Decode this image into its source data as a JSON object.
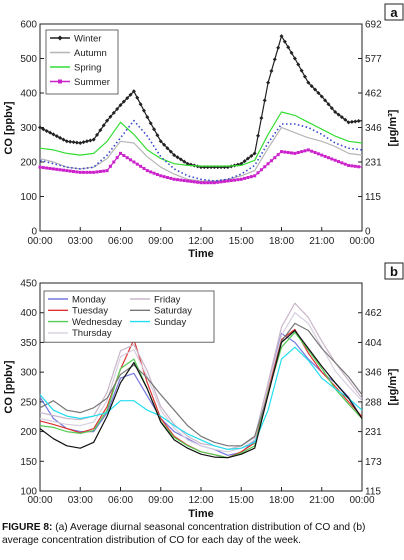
{
  "caption": {
    "label": "FIGURE 8:",
    "text": "(a) Average diurnal seasonal concentration distribution of CO and (b) average concentration distribution of CO for each day of the week."
  },
  "chart_data": [
    {
      "type": "line",
      "panel": "a",
      "xlabel": "Time",
      "ylabel": "CO [ppbv]",
      "ylabel_right": "[µg/m³]",
      "x_ticks": [
        "00:00",
        "03:00",
        "06:00",
        "09:00",
        "12:00",
        "15:00",
        "18:00",
        "21:00",
        "00:00"
      ],
      "ylim": [
        0,
        600
      ],
      "y_ticks": [
        0,
        100,
        200,
        300,
        400,
        500,
        600
      ],
      "y2_ticks": [
        "0",
        "115",
        "231",
        "346",
        "462",
        "577",
        "692"
      ],
      "legend_position": "top-left",
      "grid": false,
      "x_hours": [
        0,
        1,
        2,
        3,
        4,
        5,
        6,
        7,
        8,
        9,
        10,
        11,
        12,
        13,
        14,
        15,
        16,
        17,
        18,
        19,
        20,
        21,
        22,
        23,
        24
      ],
      "series": [
        {
          "name": "Winter",
          "color": "#222222",
          "marker": "diamond",
          "values": [
            300,
            280,
            260,
            255,
            265,
            320,
            365,
            405,
            330,
            260,
            220,
            195,
            185,
            185,
            185,
            195,
            225,
            430,
            565,
            500,
            430,
            390,
            345,
            315,
            320
          ]
        },
        {
          "name": "Autumn",
          "color": "#b5b5b5",
          "marker": "none",
          "values": [
            210,
            200,
            185,
            180,
            185,
            210,
            260,
            255,
            215,
            185,
            165,
            150,
            145,
            145,
            150,
            160,
            175,
            240,
            300,
            285,
            270,
            260,
            245,
            225,
            220
          ]
        },
        {
          "name": "Spring",
          "color": "#33dd33",
          "marker": "none",
          "values": [
            240,
            235,
            225,
            220,
            225,
            260,
            315,
            280,
            235,
            210,
            195,
            190,
            188,
            188,
            188,
            190,
            205,
            280,
            345,
            335,
            315,
            295,
            275,
            260,
            255
          ]
        },
        {
          "name": "Summer",
          "color": "#cc22cc",
          "marker": "square",
          "values": [
            185,
            180,
            175,
            170,
            170,
            175,
            225,
            200,
            175,
            160,
            150,
            145,
            140,
            140,
            145,
            150,
            160,
            195,
            230,
            225,
            235,
            220,
            205,
            190,
            185
          ]
        },
        {
          "name": "",
          "color": "#3344cc",
          "marker": "dot",
          "values": [
            205,
            195,
            185,
            180,
            185,
            220,
            270,
            320,
            275,
            215,
            180,
            160,
            150,
            145,
            150,
            165,
            190,
            255,
            310,
            310,
            300,
            280,
            255,
            240,
            235
          ]
        }
      ]
    },
    {
      "type": "line",
      "panel": "b",
      "xlabel": "Time",
      "ylabel": "CO [ppbv]",
      "ylabel_right": "[µg/m³]",
      "x_ticks": [
        "00:00",
        "03:00",
        "06:00",
        "09:00",
        "12:00",
        "15:00",
        "18:00",
        "21:00",
        "00:00"
      ],
      "ylim": [
        100,
        450
      ],
      "y_ticks": [
        100,
        150,
        200,
        250,
        300,
        350,
        400,
        450
      ],
      "y2_ticks": [
        "115",
        "173",
        "231",
        "288",
        "346",
        "404",
        "462"
      ],
      "legend_position": "top-left",
      "grid": false,
      "x_hours": [
        0,
        1,
        2,
        3,
        4,
        5,
        6,
        7,
        8,
        9,
        10,
        11,
        12,
        13,
        14,
        15,
        16,
        17,
        18,
        19,
        20,
        21,
        22,
        23,
        24
      ],
      "series": [
        {
          "name": "Monday",
          "color": "#7777dd",
          "values": [
            258,
            222,
            205,
            200,
            200,
            232,
            290,
            298,
            260,
            222,
            200,
            188,
            176,
            170,
            160,
            165,
            185,
            280,
            365,
            350,
            322,
            300,
            282,
            258,
            222
          ]
        },
        {
          "name": "Tuesday",
          "color": "#dd3333",
          "values": [
            218,
            212,
            205,
            198,
            205,
            242,
            305,
            355,
            282,
            222,
            192,
            177,
            166,
            161,
            156,
            166,
            181,
            272,
            355,
            372,
            332,
            300,
            276,
            250,
            225
          ]
        },
        {
          "name": "Wednesday",
          "color": "#55cc55",
          "values": [
            210,
            207,
            200,
            197,
            202,
            236,
            306,
            322,
            272,
            217,
            190,
            176,
            166,
            161,
            156,
            164,
            176,
            266,
            342,
            367,
            337,
            306,
            272,
            246,
            222
          ]
        },
        {
          "name": "Thursday",
          "color": "#d7cfdf",
          "values": [
            222,
            217,
            212,
            210,
            216,
            252,
            326,
            338,
            292,
            236,
            206,
            186,
            176,
            170,
            166,
            172,
            186,
            276,
            362,
            400,
            382,
            342,
            302,
            276,
            252
          ]
        },
        {
          "name": "Friday",
          "color": "#c9b6c9",
          "values": [
            232,
            227,
            222,
            220,
            226,
            266,
            336,
            346,
            302,
            242,
            212,
            192,
            180,
            176,
            170,
            176,
            190,
            282,
            376,
            416,
            392,
            352,
            316,
            286,
            256
          ]
        },
        {
          "name": "Saturday",
          "color": "#777777",
          "values": [
            240,
            252,
            236,
            232,
            240,
            256,
            296,
            312,
            290,
            262,
            236,
            210,
            192,
            182,
            176,
            176,
            192,
            262,
            352,
            382,
            370,
            340,
            316,
            292,
            262
          ]
        },
        {
          "name": "Sunday",
          "color": "#22ddee",
          "values": [
            262,
            236,
            226,
            222,
            226,
            232,
            252,
            252,
            236,
            226,
            210,
            196,
            186,
            176,
            170,
            172,
            182,
            236,
            322,
            342,
            320,
            290,
            272,
            256,
            236
          ]
        },
        {
          "name": "",
          "color": "#111111",
          "values": [
            205,
            188,
            176,
            172,
            182,
            226,
            282,
            316,
            272,
            216,
            186,
            172,
            162,
            157,
            156,
            162,
            172,
            262,
            350,
            370,
            340,
            310,
            282,
            256,
            222
          ]
        }
      ]
    }
  ]
}
